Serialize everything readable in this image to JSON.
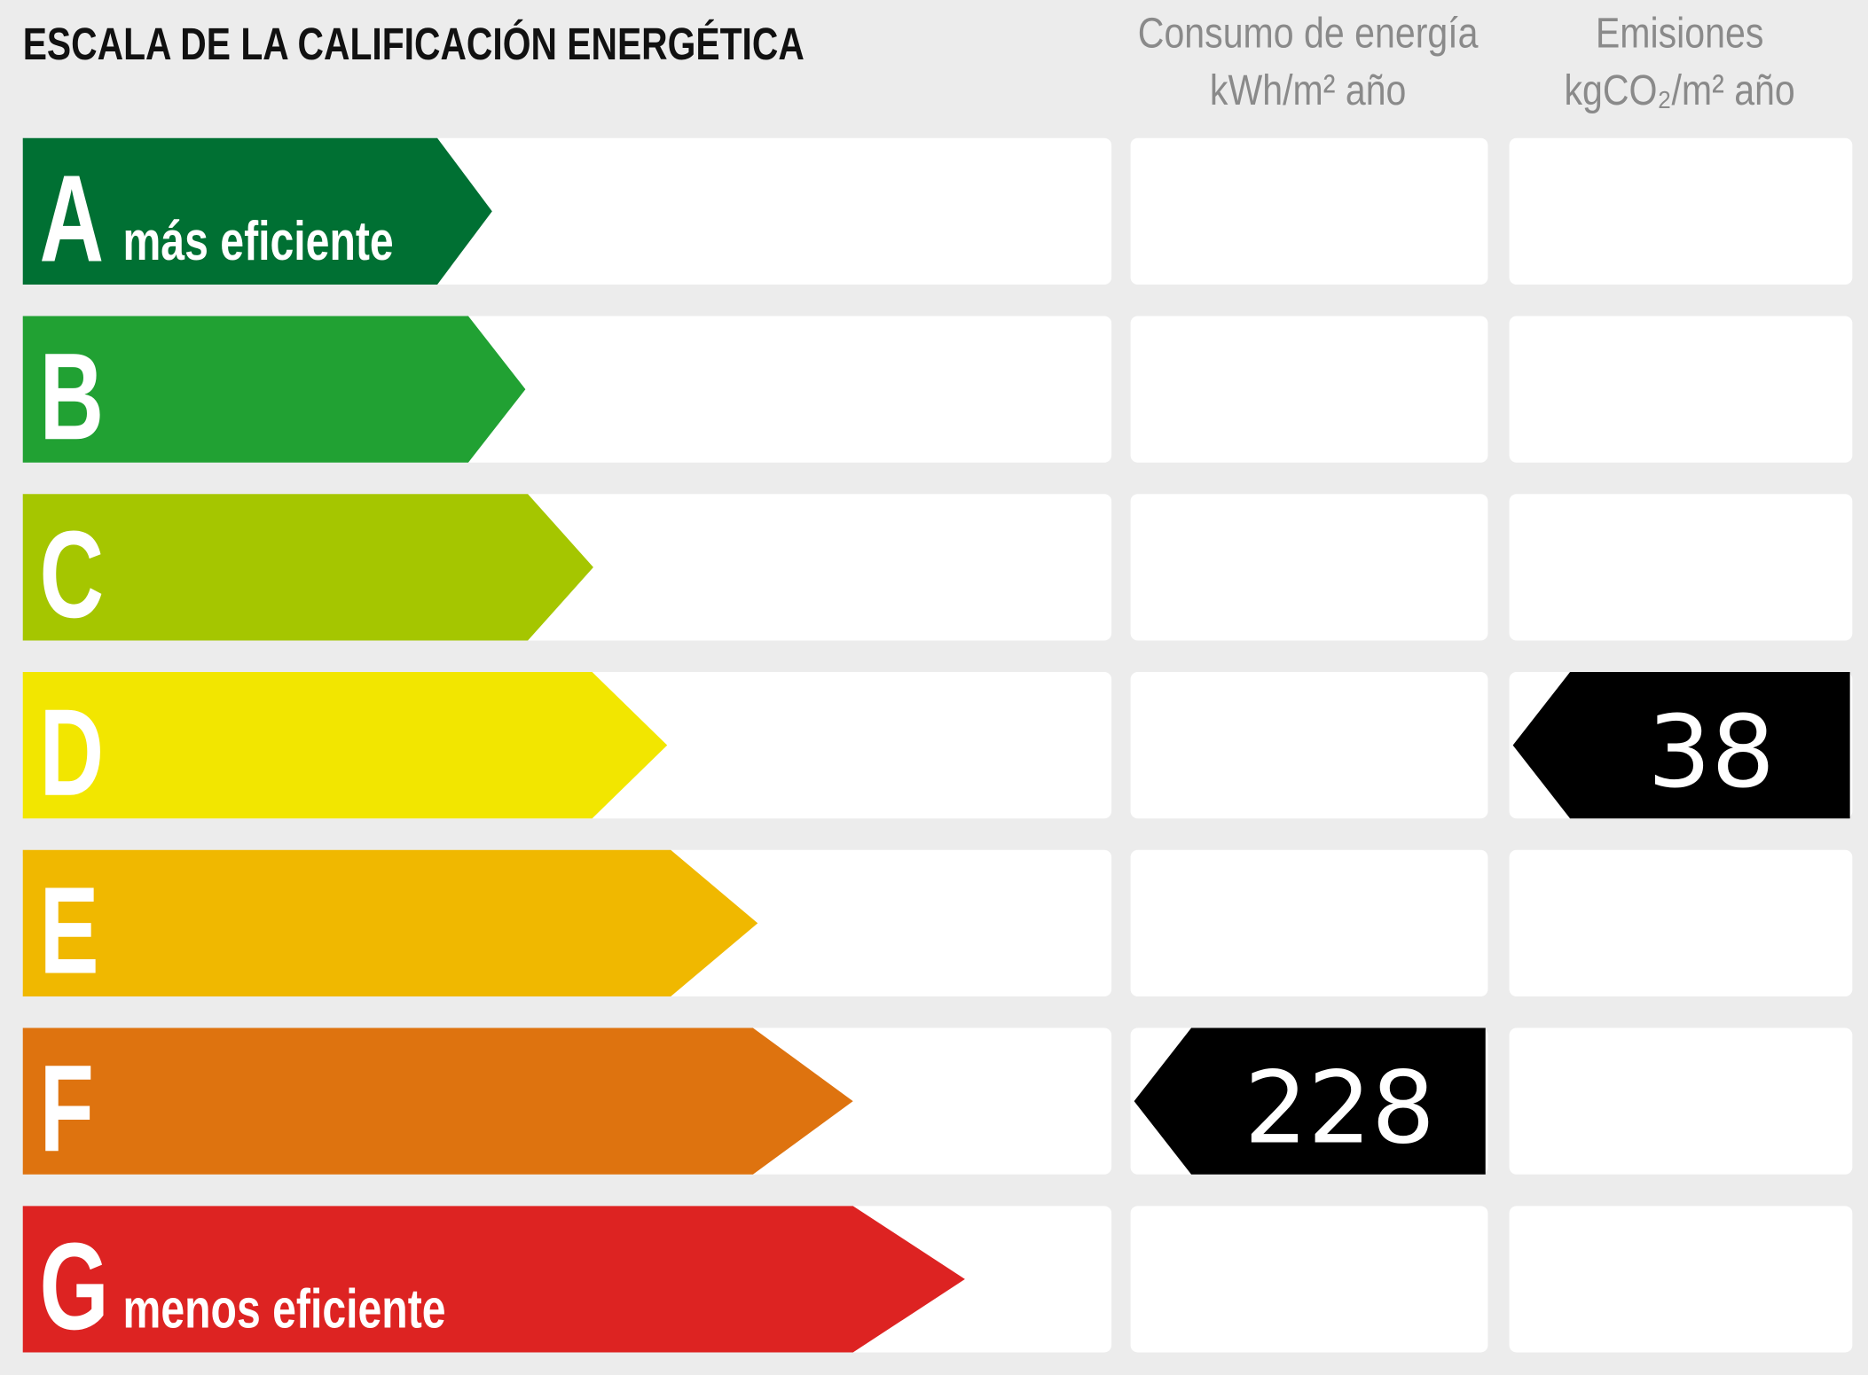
{
  "header": {
    "title": "ESCALA DE LA CALIFICACIÓN ENERGÉTICA",
    "columns": [
      {
        "title": "Consumo de energía",
        "unit": "kWh/m² año"
      },
      {
        "title": "Emisiones",
        "unit": "kgCO₂/m² año"
      }
    ]
  },
  "ratings": [
    {
      "letter": "A",
      "label": "más eficiente",
      "color": "#007033"
    },
    {
      "letter": "B",
      "color": "#21a133"
    },
    {
      "letter": "C",
      "color": "#a5c600"
    },
    {
      "letter": "D",
      "color": "#f2e600"
    },
    {
      "letter": "E",
      "color": "#f0b800"
    },
    {
      "letter": "F",
      "color": "#de730f"
    },
    {
      "letter": "G",
      "label": "menos eficiente",
      "color": "#dd2322"
    }
  ],
  "results": [
    {
      "rating": "F",
      "value": 228
    },
    {
      "rating": "D",
      "value": 38
    }
  ]
}
